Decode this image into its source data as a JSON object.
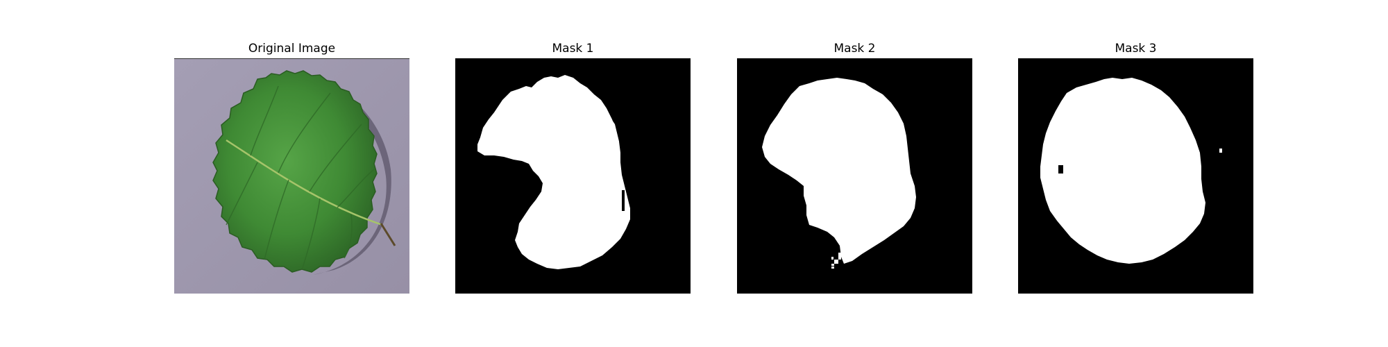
{
  "figure": {
    "panels": [
      {
        "title": "Original Image",
        "kind": "photo",
        "subject": "leaf"
      },
      {
        "title": "Mask 1",
        "kind": "mask"
      },
      {
        "title": "Mask 2",
        "kind": "mask"
      },
      {
        "title": "Mask 3",
        "kind": "mask"
      }
    ],
    "colors": {
      "background": "#ffffff",
      "mask_background": "#000000",
      "mask_foreground": "#ffffff",
      "leaf_green": "#3f8a34",
      "leaf_dark": "#2a5c22",
      "surface_gray": "#9d97ab"
    }
  }
}
